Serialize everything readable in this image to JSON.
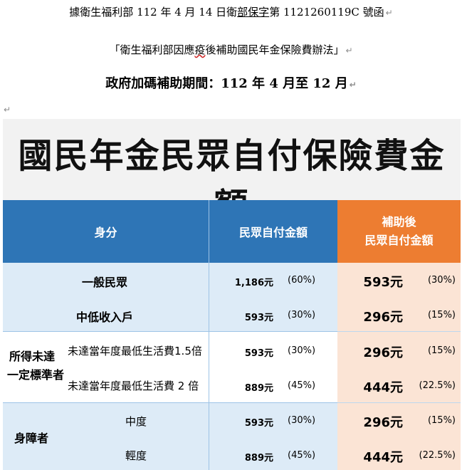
{
  "header": {
    "line1_pre": "據衛生福利部 112 年 4 月 14 日衛",
    "line1_ul": "部保字",
    "line1_post": "第 1121260119C 號函",
    "line2_pre": "「衛生福利部因應",
    "line2_sq": "疫",
    "line2_post": "後補助國民年金保險費辦法」",
    "line3": "政府加碼補助期間：112 年 4 月至 12 月",
    "para_mark": "↵"
  },
  "banner": {
    "title": "國民年金民眾自付保險費金額"
  },
  "table": {
    "headers": {
      "identity": "身分",
      "self_pay": "民眾自付金額",
      "after_line1": "補助後",
      "after_line2": "民眾自付金額"
    },
    "groups": {
      "income": [
        "所得未達",
        "一定標準者"
      ],
      "disability": "身障者"
    },
    "rows": [
      {
        "label": "一般民眾",
        "amount": "1,186元",
        "pct": "(60%)",
        "after": "593元",
        "after_pct": "(30%)"
      },
      {
        "label": "中低收入戶",
        "amount": "593元",
        "pct": "(30%)",
        "after": "296元",
        "after_pct": "(15%)"
      },
      {
        "label": "未達當年度最低生活費1.5倍",
        "amount": "593元",
        "pct": "(30%)",
        "after": "296元",
        "after_pct": "(15%)"
      },
      {
        "label": "未達當年度最低生活費 2 倍",
        "amount": "889元",
        "pct": "(45%)",
        "after": "444元",
        "after_pct": "(22.5%)"
      },
      {
        "label": "中度",
        "amount": "593元",
        "pct": "(30%)",
        "after": "296元",
        "after_pct": "(15%)"
      },
      {
        "label": "輕度",
        "amount": "889元",
        "pct": "(45%)",
        "after": "444元",
        "after_pct": "(22.5%)"
      }
    ]
  }
}
